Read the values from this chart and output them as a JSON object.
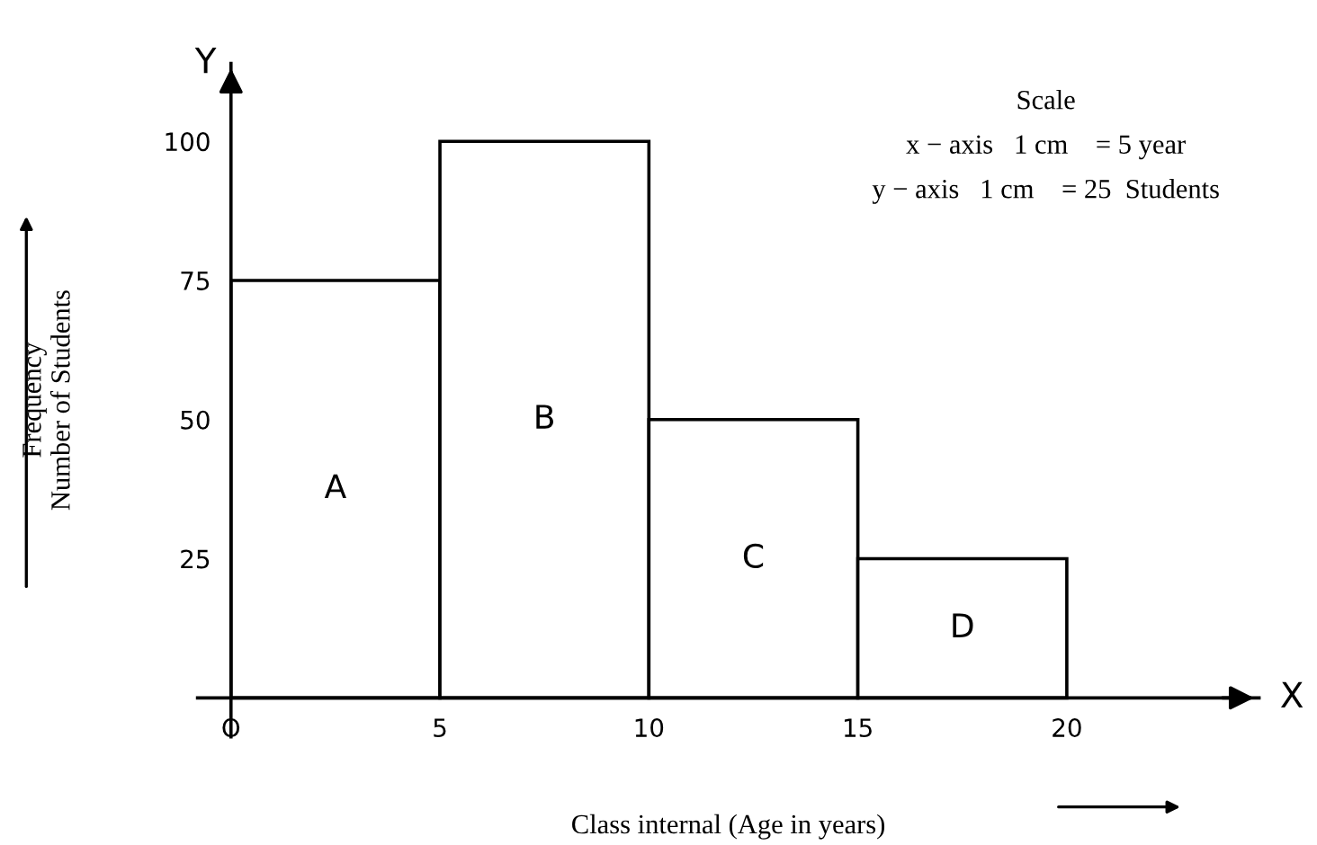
{
  "chart_data": {
    "type": "histogram",
    "bins": [
      0,
      5,
      10,
      15,
      20
    ],
    "values": [
      75,
      100,
      50,
      25
    ],
    "color": "#ffffff",
    "xlim": [
      -0.8,
      24.6
    ],
    "ylim": [
      -7,
      114
    ],
    "xticks": [
      {
        "value": 0,
        "label": "O"
      },
      5,
      10,
      15,
      20
    ],
    "yticks": [
      25,
      50,
      75,
      100
    ],
    "xlabel": "Class internal (Age in years)",
    "ylabel": "Frequency\nNumber of Students",
    "grid": false,
    "legend": false,
    "annotations": [
      "A",
      "B",
      "C",
      "D",
      "Y",
      "X",
      "Scale",
      "x − axis   1 cm    = 5 year",
      "y − axis   1 cm    = 25  Students"
    ]
  }
}
